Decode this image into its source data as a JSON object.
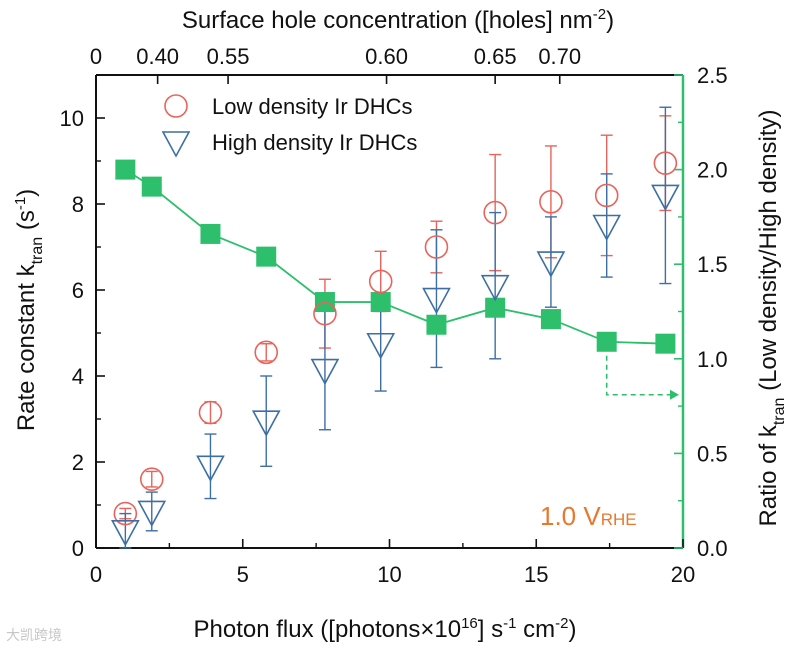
{
  "chart_data": {
    "type": "scatter",
    "xlabel_main": "Photon flux ([photons×10",
    "xlabel_sup1": "16",
    "xlabel_mid1": "] s",
    "xlabel_sup2": "-1",
    "xlabel_mid2": " cm",
    "xlabel_sup3": "-2",
    "xlabel_end": ")",
    "ylabel_main": "Rate constant k",
    "ylabel_sub": "tran",
    "ylabel_mid": " (s",
    "ylabel_sup": "-1",
    "ylabel_end": ")",
    "y2label_main": "Ratio of k",
    "y2label_sub": "tran",
    "y2label_end": " (Low density/High density)",
    "top_label_main": "Surface hole concentration ([holes] nm",
    "top_label_sup": "-2",
    "top_label_end": ")",
    "annotation_main": "1.0 V",
    "annotation_sub": "RHE",
    "xlim": [
      0,
      20
    ],
    "ylim": [
      0,
      11
    ],
    "y2lim": [
      0,
      2.5
    ],
    "x_ticks": [
      "0",
      "5",
      "10",
      "15",
      "20"
    ],
    "y_ticks": [
      "0",
      "2",
      "4",
      "6",
      "8",
      "10"
    ],
    "y2_ticks": [
      "0.0",
      "0.5",
      "1.0",
      "1.5",
      "2.0",
      "2.5"
    ],
    "top_ticks": [
      {
        "x": 0,
        "label": "0"
      },
      {
        "x": 2.1,
        "label": "0.40"
      },
      {
        "x": 4.5,
        "label": "0.55"
      },
      {
        "x": 9.9,
        "label": "0.60"
      },
      {
        "x": 13.6,
        "label": "0.65"
      },
      {
        "x": 15.8,
        "label": "0.70"
      }
    ],
    "series": [
      {
        "name": "Low density Ir DHCs",
        "color": "#e8635b",
        "marker": "circle",
        "x": [
          1.0,
          1.9,
          3.9,
          5.8,
          7.8,
          9.7,
          11.6,
          13.6,
          15.5,
          17.4,
          19.4
        ],
        "y": [
          0.8,
          1.6,
          3.15,
          4.55,
          5.45,
          6.2,
          7.0,
          7.8,
          8.05,
          8.2,
          8.95
        ],
        "err": [
          0.12,
          0.18,
          0.25,
          0.2,
          0.8,
          0.7,
          0.6,
          1.35,
          1.3,
          1.4,
          1.1
        ]
      },
      {
        "name": "High density Ir DHCs",
        "color": "#3d6fa3",
        "marker": "triangle-down",
        "x": [
          1.0,
          1.9,
          3.9,
          5.8,
          7.8,
          9.7,
          11.6,
          13.6,
          15.5,
          17.4,
          19.4
        ],
        "y": [
          0.4,
          0.85,
          1.9,
          2.95,
          4.15,
          4.75,
          5.8,
          6.1,
          6.65,
          7.5,
          8.2
        ],
        "err": [
          0.4,
          0.45,
          0.75,
          1.05,
          1.4,
          1.1,
          1.6,
          1.7,
          1.05,
          1.2,
          2.05
        ]
      },
      {
        "name": "Ratio of k_tran (Low density/High density)",
        "axis": "right",
        "color": "#2dbf6c",
        "marker": "square",
        "x": [
          1.0,
          1.9,
          3.9,
          5.8,
          7.8,
          9.7,
          11.6,
          13.6,
          15.5,
          17.4,
          19.4
        ],
        "y": [
          2.0,
          1.91,
          1.66,
          1.54,
          1.3,
          1.3,
          1.18,
          1.27,
          1.21,
          1.09,
          1.08
        ]
      }
    ],
    "ratio_arrow_target": "right-axis",
    "colors": {
      "axis": "#111111",
      "right_axis": "#2dbf6c",
      "annotation": "#e8782d",
      "low": "#e8635b",
      "high": "#3d6fa3",
      "ratio": "#2dbf6c"
    }
  },
  "watermark": {
    "text": "大凯跨境"
  }
}
